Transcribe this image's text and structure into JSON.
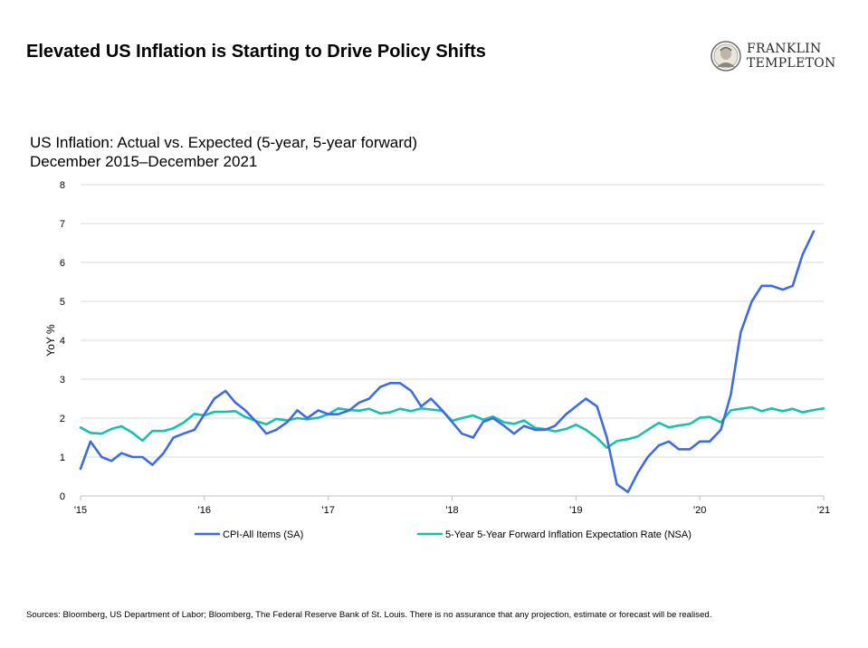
{
  "header": {
    "title": "Elevated US Inflation is Starting to Drive Policy Shifts"
  },
  "logo": {
    "line1": "FRANKLIN",
    "line2": "TEMPLETON"
  },
  "subtitle": {
    "line1": "US Inflation: Actual vs. Expected (5-year, 5-year forward)",
    "line2": "December 2015–December 2021"
  },
  "footer": {
    "sources": "Sources: Bloomberg, US Department of Labor; Bloomberg, The Federal Reserve Bank of St. Louis. There is no assurance that any projection, estimate or forecast will be realised."
  },
  "colors": {
    "cpi": "#3e6ce0",
    "expectation": "#1cbfae",
    "grid": "#d9d9d9",
    "axis": "#bfbfbf"
  },
  "chart_data": {
    "type": "line",
    "xlabel": "",
    "ylabel": "YoY %",
    "ylim": [
      0,
      8
    ],
    "yticks": [
      "0",
      "1",
      "2",
      "3",
      "4",
      "5",
      "6",
      "7",
      "8"
    ],
    "xlim": [
      2015.0,
      2021.0
    ],
    "xticks": [
      {
        "x": 2015,
        "label": "'15"
      },
      {
        "x": 2016,
        "label": "'16"
      },
      {
        "x": 2017,
        "label": "'17"
      },
      {
        "x": 2018,
        "label": "'18"
      },
      {
        "x": 2019,
        "label": "'19"
      },
      {
        "x": 2020,
        "label": "'20"
      },
      {
        "x": 2021,
        "label": "'21"
      }
    ],
    "grid": true,
    "legend_position": "bottom",
    "series": [
      {
        "name": "CPI-All Items (SA)",
        "color": "#3e6ce0",
        "points": [
          [
            2015.0,
            0.7
          ],
          [
            2015.08,
            1.4
          ],
          [
            2015.17,
            1.0
          ],
          [
            2015.25,
            0.9
          ],
          [
            2015.33,
            1.1
          ],
          [
            2015.42,
            1.0
          ],
          [
            2015.5,
            1.0
          ],
          [
            2015.58,
            0.8
          ],
          [
            2015.67,
            1.1
          ],
          [
            2015.75,
            1.5
          ],
          [
            2015.83,
            1.6
          ],
          [
            2015.92,
            1.7
          ],
          [
            2016.0,
            2.1
          ],
          [
            2016.08,
            2.5
          ],
          [
            2016.17,
            2.7
          ],
          [
            2016.25,
            2.4
          ],
          [
            2016.33,
            2.2
          ],
          [
            2016.42,
            1.9
          ],
          [
            2016.5,
            1.6
          ],
          [
            2016.58,
            1.7
          ],
          [
            2016.67,
            1.9
          ],
          [
            2016.75,
            2.2
          ],
          [
            2016.83,
            2.0
          ],
          [
            2016.92,
            2.2
          ],
          [
            2017.0,
            2.1
          ],
          [
            2017.08,
            2.1
          ],
          [
            2017.17,
            2.2
          ],
          [
            2017.25,
            2.4
          ],
          [
            2017.33,
            2.5
          ],
          [
            2017.42,
            2.8
          ],
          [
            2017.5,
            2.9
          ],
          [
            2017.58,
            2.9
          ],
          [
            2017.67,
            2.7
          ],
          [
            2017.75,
            2.3
          ],
          [
            2017.83,
            2.5
          ],
          [
            2017.92,
            2.2
          ],
          [
            2018.0,
            1.9
          ],
          [
            2018.08,
            1.6
          ],
          [
            2018.17,
            1.5
          ],
          [
            2018.25,
            1.9
          ],
          [
            2018.33,
            2.0
          ],
          [
            2018.42,
            1.8
          ],
          [
            2018.5,
            1.6
          ],
          [
            2018.58,
            1.8
          ],
          [
            2018.67,
            1.7
          ],
          [
            2018.75,
            1.7
          ],
          [
            2018.83,
            1.8
          ],
          [
            2018.92,
            2.1
          ],
          [
            2019.0,
            2.3
          ],
          [
            2019.08,
            2.5
          ],
          [
            2019.17,
            2.3
          ],
          [
            2019.25,
            1.5
          ],
          [
            2019.33,
            0.3
          ],
          [
            2019.42,
            0.1
          ],
          [
            2019.5,
            0.6
          ],
          [
            2019.58,
            1.0
          ],
          [
            2019.67,
            1.3
          ],
          [
            2019.75,
            1.4
          ],
          [
            2019.83,
            1.2
          ],
          [
            2019.92,
            1.2
          ],
          [
            2020.0,
            1.4
          ],
          [
            2020.08,
            1.4
          ],
          [
            2020.17,
            1.7
          ],
          [
            2020.25,
            2.6
          ],
          [
            2020.33,
            4.2
          ],
          [
            2020.42,
            5.0
          ],
          [
            2020.5,
            5.4
          ],
          [
            2020.58,
            5.4
          ],
          [
            2020.67,
            5.3
          ],
          [
            2020.75,
            5.4
          ],
          [
            2020.83,
            6.2
          ],
          [
            2020.92,
            6.8
          ]
        ]
      },
      {
        "name": "5-Year 5-Year Forward Inflation Expectation Rate (NSA)",
        "color": "#1cbfae",
        "points": [
          [
            2015.0,
            1.76
          ],
          [
            2015.08,
            1.62
          ],
          [
            2015.17,
            1.6
          ],
          [
            2015.25,
            1.72
          ],
          [
            2015.33,
            1.79
          ],
          [
            2015.42,
            1.62
          ],
          [
            2015.5,
            1.42
          ],
          [
            2015.58,
            1.67
          ],
          [
            2015.67,
            1.67
          ],
          [
            2015.75,
            1.74
          ],
          [
            2015.83,
            1.88
          ],
          [
            2015.92,
            2.11
          ],
          [
            2016.0,
            2.07
          ],
          [
            2016.08,
            2.16
          ],
          [
            2016.17,
            2.16
          ],
          [
            2016.25,
            2.18
          ],
          [
            2016.33,
            2.03
          ],
          [
            2016.42,
            1.92
          ],
          [
            2016.5,
            1.84
          ],
          [
            2016.58,
            1.98
          ],
          [
            2016.67,
            1.94
          ],
          [
            2016.75,
            2.0
          ],
          [
            2016.83,
            1.97
          ],
          [
            2016.92,
            2.01
          ],
          [
            2017.0,
            2.1
          ],
          [
            2017.08,
            2.25
          ],
          [
            2017.17,
            2.21
          ],
          [
            2017.25,
            2.19
          ],
          [
            2017.33,
            2.24
          ],
          [
            2017.42,
            2.12
          ],
          [
            2017.5,
            2.15
          ],
          [
            2017.58,
            2.24
          ],
          [
            2017.67,
            2.18
          ],
          [
            2017.75,
            2.25
          ],
          [
            2017.83,
            2.22
          ],
          [
            2017.92,
            2.19
          ],
          [
            2018.0,
            1.93
          ],
          [
            2018.08,
            2.0
          ],
          [
            2018.17,
            2.07
          ],
          [
            2018.25,
            1.96
          ],
          [
            2018.33,
            2.04
          ],
          [
            2018.42,
            1.89
          ],
          [
            2018.5,
            1.85
          ],
          [
            2018.58,
            1.94
          ],
          [
            2018.67,
            1.75
          ],
          [
            2018.75,
            1.72
          ],
          [
            2018.83,
            1.66
          ],
          [
            2018.92,
            1.72
          ],
          [
            2019.0,
            1.83
          ],
          [
            2019.08,
            1.7
          ],
          [
            2019.17,
            1.49
          ],
          [
            2019.25,
            1.24
          ],
          [
            2019.33,
            1.41
          ],
          [
            2019.42,
            1.46
          ],
          [
            2019.5,
            1.53
          ],
          [
            2019.58,
            1.7
          ],
          [
            2019.67,
            1.88
          ],
          [
            2019.75,
            1.76
          ],
          [
            2019.83,
            1.81
          ],
          [
            2019.92,
            1.85
          ],
          [
            2020.0,
            2.01
          ],
          [
            2020.08,
            2.03
          ],
          [
            2020.17,
            1.89
          ],
          [
            2020.25,
            2.2
          ],
          [
            2020.33,
            2.24
          ],
          [
            2020.42,
            2.28
          ],
          [
            2020.5,
            2.18
          ],
          [
            2020.58,
            2.25
          ],
          [
            2020.67,
            2.18
          ],
          [
            2020.75,
            2.24
          ],
          [
            2020.83,
            2.15
          ],
          [
            2020.92,
            2.21
          ],
          [
            2021.0,
            2.25
          ]
        ]
      }
    ]
  }
}
